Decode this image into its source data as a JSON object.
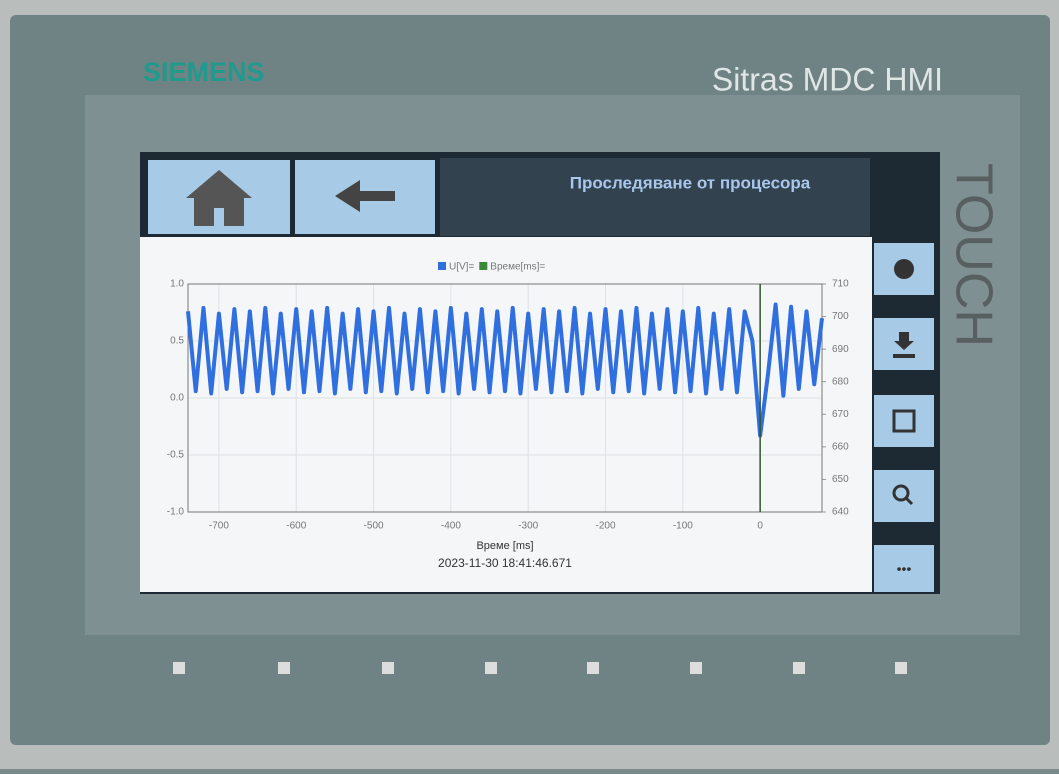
{
  "header": {
    "brand": "SIEMENS",
    "model": "Sitras MDC HMI",
    "side_label": "TOUCH"
  },
  "screen": {
    "title": "Проследяване от процесора",
    "more_button": "•••"
  },
  "chart_data": {
    "type": "line",
    "x_label": "Време [ms]",
    "timestamp": "2023-11-30 18:41:46.671",
    "x": [
      -740,
      -730,
      -720,
      -710,
      -700,
      -690,
      -680,
      -670,
      -660,
      -650,
      -640,
      -630,
      -620,
      -610,
      -600,
      -590,
      -580,
      -570,
      -560,
      -550,
      -540,
      -530,
      -520,
      -510,
      -500,
      -490,
      -480,
      -470,
      -460,
      -450,
      -440,
      -430,
      -420,
      -410,
      -400,
      -390,
      -380,
      -370,
      -360,
      -350,
      -340,
      -330,
      -320,
      -310,
      -300,
      -290,
      -280,
      -270,
      -260,
      -250,
      -240,
      -230,
      -220,
      -210,
      -200,
      -190,
      -180,
      -170,
      -160,
      -150,
      -140,
      -130,
      -120,
      -110,
      -100,
      -90,
      -80,
      -70,
      -60,
      -50,
      -40,
      -30,
      -20,
      -10,
      0,
      10,
      20,
      30,
      40,
      50,
      60,
      70,
      80
    ],
    "series": [
      {
        "name": "U[V]=",
        "color": "#2f6fe0",
        "values": [
          0.76,
          0.06,
          0.79,
          0.04,
          0.74,
          0.08,
          0.78,
          0.05,
          0.76,
          0.06,
          0.79,
          0.04,
          0.74,
          0.08,
          0.78,
          0.05,
          0.76,
          0.06,
          0.79,
          0.04,
          0.74,
          0.08,
          0.78,
          0.05,
          0.76,
          0.06,
          0.79,
          0.04,
          0.74,
          0.08,
          0.78,
          0.05,
          0.76,
          0.06,
          0.79,
          0.04,
          0.74,
          0.08,
          0.78,
          0.05,
          0.76,
          0.06,
          0.79,
          0.04,
          0.74,
          0.08,
          0.78,
          0.05,
          0.76,
          0.06,
          0.79,
          0.04,
          0.74,
          0.08,
          0.78,
          0.05,
          0.76,
          0.06,
          0.79,
          0.04,
          0.74,
          0.08,
          0.78,
          0.05,
          0.76,
          0.06,
          0.79,
          0.04,
          0.74,
          0.08,
          0.78,
          0.05,
          0.76,
          0.5,
          -0.33,
          0.2,
          0.82,
          0.02,
          0.8,
          0.08,
          0.76,
          0.12,
          0.7
        ]
      },
      {
        "name": "Време[ms]=",
        "color": "#3a8a3a",
        "axis": "y2"
      }
    ],
    "cursor": 0,
    "xlim": [
      -740,
      80
    ],
    "xticks": [
      -700,
      -600,
      -500,
      -400,
      -300,
      -200,
      -100,
      0
    ],
    "ylim": [
      -1,
      1
    ],
    "yticks": [
      {
        "value": -1,
        "label": "-1.0"
      },
      {
        "value": -0.5,
        "label": "-0.5"
      },
      {
        "value": 0,
        "label": "0.0"
      },
      {
        "value": 0.5,
        "label": "0.5"
      },
      {
        "value": 1,
        "label": "1.0"
      }
    ],
    "y2lim": [
      640,
      710
    ],
    "y2ticks": [
      640,
      650,
      660,
      670,
      680,
      690,
      700,
      710
    ],
    "grid": true
  }
}
